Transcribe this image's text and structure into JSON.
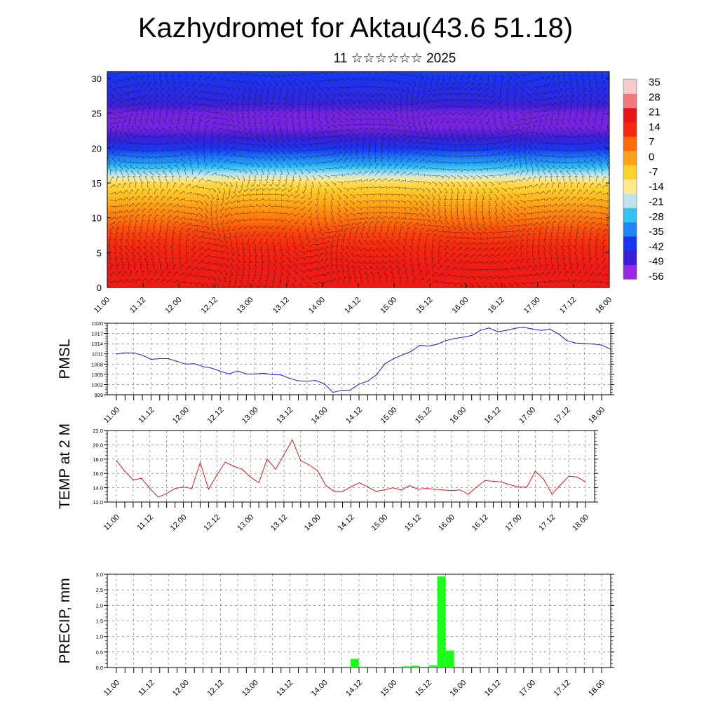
{
  "title": "Kazhydromet for Aktau(43.6 51.18)",
  "subtitle": "11 ☆☆☆☆☆☆ 2025",
  "chart_data": [
    {
      "type": "heatmap",
      "title": "Kazhydromet for Aktau(43.6 51.18)",
      "subtitle": "11 ☆☆☆☆☆☆ 2025",
      "xlabel": "",
      "ylabel": "",
      "x_ticks": [
        "11.00",
        "11.12",
        "12.00",
        "12.12",
        "13.00",
        "13.12",
        "14.00",
        "14.12",
        "15.00",
        "15.12",
        "16.00",
        "16.12",
        "17.00",
        "17.12",
        "18.00"
      ],
      "y_ticks": [
        0,
        5,
        10,
        15,
        20,
        25,
        30
      ],
      "ylim": [
        0,
        31
      ],
      "overlay": "wind barbs",
      "colorbar_ticks": [
        35,
        28,
        21,
        14,
        7,
        0,
        -7,
        -14,
        -21,
        -28,
        -35,
        -42,
        -49,
        -56
      ],
      "colorbar_range": [
        -60,
        38
      ],
      "colorbar_colors": [
        "#9a28e6",
        "#3c1fd6",
        "#1836f0",
        "#1f86f5",
        "#32c3f2",
        "#bfe3ee",
        "#ffe98a",
        "#ffd02e",
        "#ffa216",
        "#ff6a0a",
        "#f52810",
        "#e8141a",
        "#f07a80",
        "#f7c9cc"
      ],
      "temperature_profile": {
        "levels": [
          0,
          3,
          8,
          12,
          15,
          16,
          18,
          20,
          21.5,
          23,
          25,
          27,
          31
        ],
        "values": [
          20,
          20,
          12,
          0,
          -10,
          -20,
          -35,
          -45,
          -52,
          -57,
          -57,
          -50,
          -44
        ]
      }
    },
    {
      "type": "line",
      "ylabel": "PMSL",
      "x_ticks": [
        "11.00",
        "11.12",
        "12.00",
        "12.12",
        "13.00",
        "13.12",
        "14.00",
        "14.12",
        "15.00",
        "15.12",
        "16.00",
        "16.12",
        "17.00",
        "17.12",
        "18.00"
      ],
      "y_ticks": [
        999,
        1002,
        1005,
        1008,
        1011,
        1014,
        1017,
        1020
      ],
      "ylim": [
        999,
        1020
      ],
      "grid": true,
      "step_hours": 3,
      "series": [
        {
          "color": "#1a1ae6",
          "values": [
            1011.0,
            1011.3,
            1011.3,
            1010.6,
            1009.4,
            1009.6,
            1009.6,
            1008.8,
            1008.0,
            1008.1,
            1007.3,
            1006.8,
            1005.9,
            1005.1,
            1006.0,
            1005.1,
            1005.1,
            1005.3,
            1004.9,
            1004.8,
            1003.8,
            1003.1,
            1003.0,
            1003.2,
            1002.2,
            999.7,
            1000.3,
            1000.4,
            1002.1,
            1003.0,
            1004.8,
            1008.1,
            1009.6,
            1010.7,
            1011.7,
            1013.5,
            1013.3,
            1013.8,
            1014.9,
            1015.5,
            1015.9,
            1016.4,
            1017.9,
            1018.6,
            1017.5,
            1017.9,
            1018.5,
            1018.8,
            1018.3,
            1017.9,
            1018.3,
            1016.9,
            1014.9,
            1014.2,
            1014.1,
            1013.9,
            1013.6,
            1012.4
          ]
        }
      ]
    },
    {
      "type": "line",
      "ylabel": "TEMP at 2 M",
      "x_ticks": [
        "11.00",
        "11.12",
        "12.00",
        "12.12",
        "13.00",
        "13.12",
        "14.00",
        "14.12",
        "15.00",
        "15.12",
        "16.00",
        "16.12",
        "17.00",
        "17.12",
        "18.00"
      ],
      "y_ticks": [
        "12.0",
        "14.0",
        "16.0",
        "18.0",
        "20.0",
        "22.0"
      ],
      "ylim": [
        12,
        22
      ],
      "grid": true,
      "step_hours": 3,
      "series": [
        {
          "color": "#e61a1a",
          "values": [
            17.8,
            16.3,
            15.1,
            15.3,
            13.9,
            12.7,
            13.2,
            13.9,
            14.1,
            13.9,
            17.5,
            13.8,
            15.8,
            17.6,
            17.0,
            16.6,
            15.5,
            14.7,
            18.0,
            16.6,
            18.6,
            20.7,
            17.8,
            17.2,
            16.4,
            14.3,
            13.5,
            13.5,
            14.1,
            14.7,
            14.1,
            13.5,
            13.7,
            14.0,
            13.7,
            14.3,
            13.8,
            13.9,
            13.8,
            13.7,
            13.6,
            13.7,
            13.1,
            14.1,
            15.0,
            14.9,
            14.8,
            14.4,
            14.1,
            14.1,
            16.3,
            15.2,
            13.1,
            14.4,
            15.6,
            15.5,
            14.8
          ]
        }
      ]
    },
    {
      "type": "bar",
      "ylabel": "PRECIP, mm",
      "x_ticks": [
        "11.00",
        "11.12",
        "12.00",
        "12.12",
        "13.00",
        "13.12",
        "14.00",
        "14.12",
        "15.00",
        "15.12",
        "16.00",
        "16.12",
        "17.00",
        "17.12",
        "18.00"
      ],
      "y_ticks": [
        "0.0",
        "0.5",
        "1.0",
        "1.5",
        "2.0",
        "2.5",
        "3.0"
      ],
      "ylim": [
        0,
        3.0
      ],
      "grid": true,
      "bar_color": "#1aff1a",
      "bars": [
        {
          "x_hours": 82.5,
          "value": 0.28
        },
        {
          "x_hours": 85.5,
          "value": 0.03
        },
        {
          "x_hours": 100.5,
          "value": 0.04
        },
        {
          "x_hours": 103.5,
          "value": 0.06
        },
        {
          "x_hours": 109.5,
          "value": 0.07
        },
        {
          "x_hours": 112.5,
          "value": 2.93
        },
        {
          "x_hours": 115.5,
          "value": 0.55
        }
      ]
    }
  ]
}
